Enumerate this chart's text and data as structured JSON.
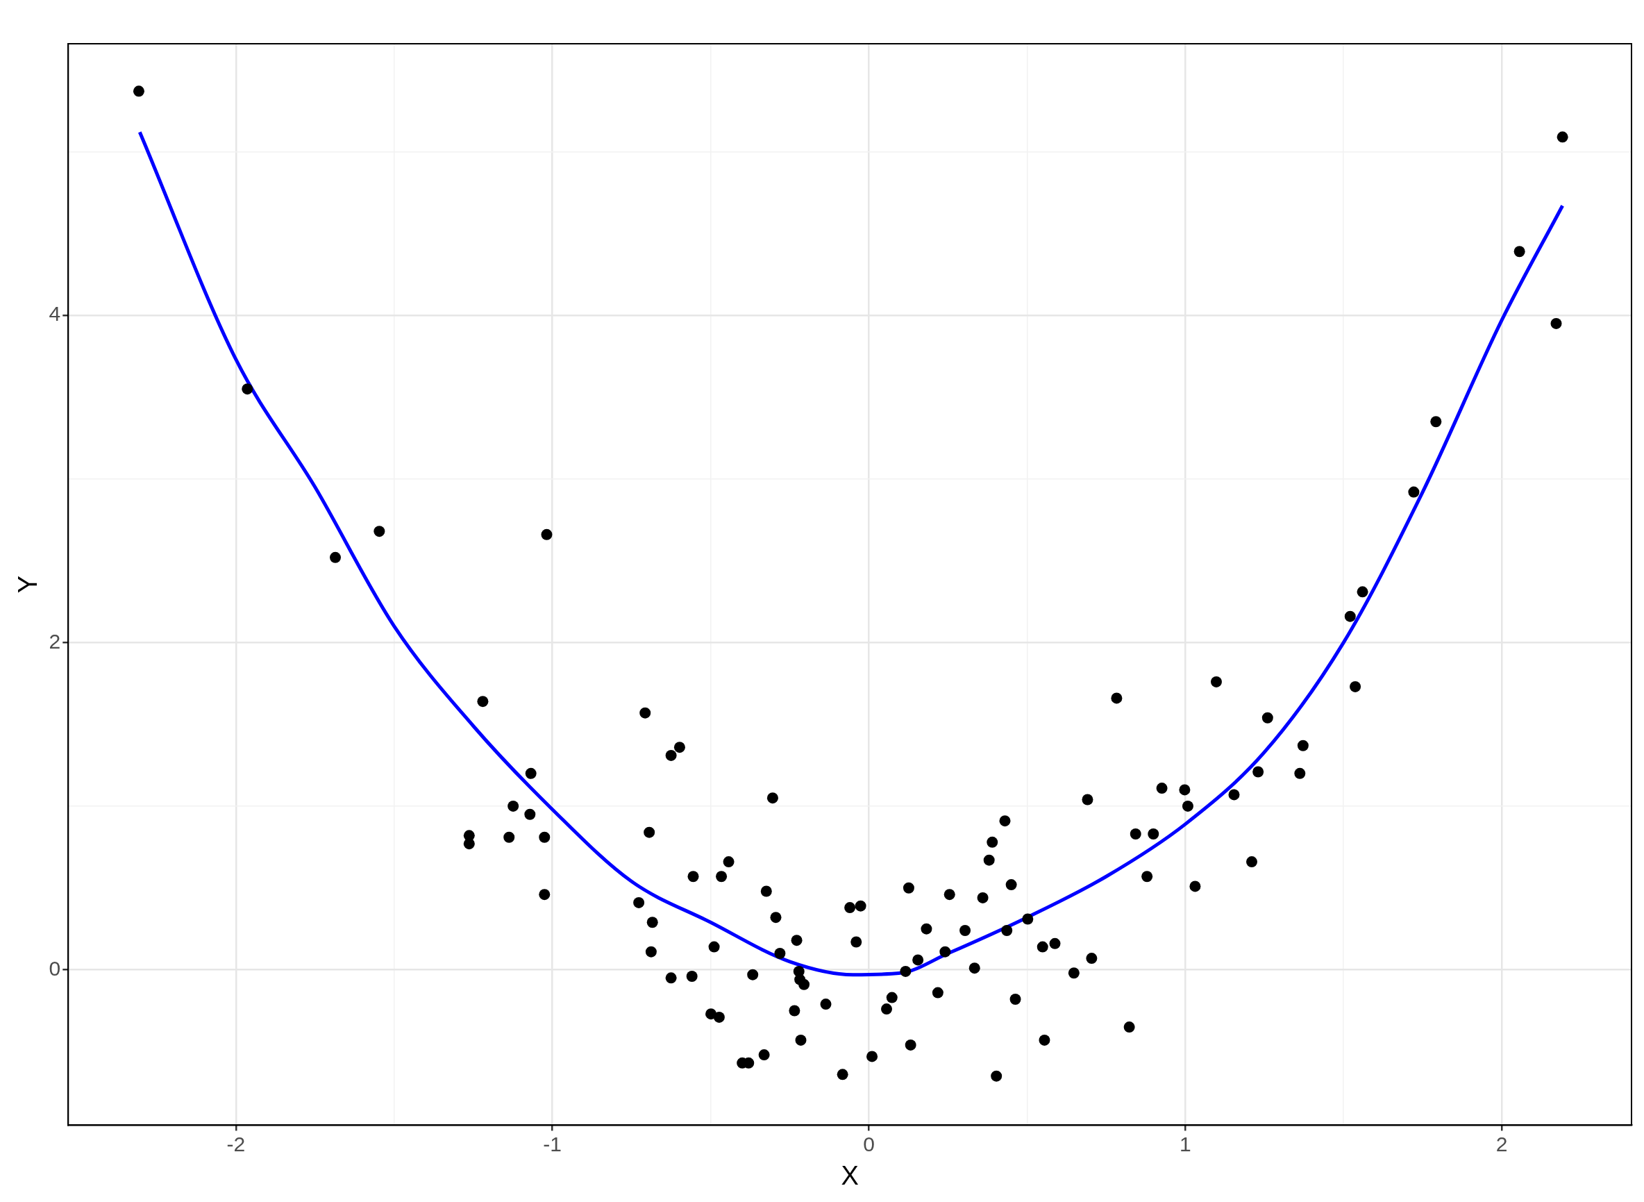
{
  "chart_data": {
    "type": "scatter",
    "xlabel": "X",
    "ylabel": "Y",
    "grid": true,
    "xlim": [
      -2.53,
      2.41
    ],
    "ylim": [
      -0.95,
      5.66
    ],
    "xticks": [
      -2,
      {
        "value": -1.5,
        "label": null
      },
      -1,
      {
        "value": -0.5,
        "label": null
      },
      0,
      {
        "value": 0.5,
        "label": null
      },
      1,
      {
        "value": 1.5,
        "label": null
      },
      2
    ],
    "yticks": [
      0,
      {
        "value": 1,
        "label": null
      },
      2,
      {
        "value": 3,
        "label": null
      },
      4,
      {
        "value": 5,
        "label": null
      }
    ],
    "series": [
      {
        "type": "scatter",
        "marker": "circle",
        "color": "#000000",
        "x": [
          -2.307,
          -1.964,
          -1.686,
          -1.547,
          -1.018,
          -1.22,
          -1.263,
          -1.263,
          -1.137,
          -1.124,
          -1.068,
          -1.071,
          -1.025,
          -1.025,
          -0.707,
          -0.694,
          -0.727,
          -0.684,
          -0.688,
          -0.625,
          -0.598,
          -0.625,
          -0.555,
          -0.559,
          -0.466,
          -0.443,
          -0.489,
          -0.499,
          -0.473,
          -0.4,
          -0.38,
          -0.367,
          -0.324,
          -0.304,
          -0.294,
          -0.281,
          -0.331,
          -0.228,
          -0.221,
          -0.218,
          -0.205,
          -0.235,
          -0.215,
          -0.136,
          -0.083,
          -0.06,
          -0.026,
          -0.04,
          0.01,
          0.056,
          0.073,
          0.116,
          0.126,
          0.132,
          0.155,
          0.182,
          0.218,
          0.241,
          0.255,
          0.304,
          0.334,
          0.36,
          0.38,
          0.39,
          0.403,
          0.43,
          0.436,
          0.45,
          0.463,
          0.502,
          0.549,
          0.555,
          0.588,
          0.648,
          0.691,
          0.704,
          0.783,
          0.823,
          0.843,
          0.879,
          0.899,
          0.926,
          0.998,
          1.008,
          1.031,
          1.098,
          1.154,
          1.21,
          1.23,
          1.26,
          1.362,
          1.372,
          1.521,
          1.537,
          1.56,
          1.722,
          1.792,
          2.056,
          2.172,
          2.192
        ],
        "values": [
          5.37,
          3.55,
          2.52,
          2.68,
          2.66,
          1.64,
          0.82,
          0.77,
          0.81,
          1.0,
          1.2,
          0.95,
          0.81,
          0.46,
          1.57,
          0.84,
          0.41,
          0.29,
          0.11,
          1.31,
          1.36,
          -0.05,
          0.57,
          -0.04,
          0.57,
          0.66,
          0.14,
          -0.27,
          -0.29,
          -0.57,
          -0.57,
          -0.03,
          0.48,
          1.05,
          0.32,
          0.1,
          -0.52,
          0.18,
          -0.01,
          -0.06,
          -0.09,
          -0.25,
          -0.43,
          -0.21,
          -0.64,
          0.38,
          0.39,
          0.17,
          -0.53,
          -0.24,
          -0.17,
          -0.01,
          0.5,
          -0.46,
          0.06,
          0.25,
          -0.14,
          0.11,
          0.46,
          0.24,
          0.01,
          0.44,
          0.67,
          0.78,
          -0.65,
          0.91,
          0.24,
          0.52,
          -0.18,
          0.31,
          0.14,
          -0.43,
          0.16,
          -0.02,
          1.04,
          0.07,
          1.66,
          -0.35,
          0.83,
          0.57,
          0.83,
          1.11,
          1.1,
          1.0,
          0.51,
          1.76,
          1.07,
          0.66,
          1.21,
          1.54,
          1.2,
          1.37,
          2.16,
          1.73,
          2.31,
          2.92,
          3.35,
          4.39,
          3.95,
          5.09
        ]
      },
      {
        "type": "line",
        "marker": "none",
        "color": "#0000ff",
        "x": [
          -2.304,
          -2.0,
          -1.75,
          -1.5,
          -1.25,
          -1.0,
          -0.75,
          -0.5,
          -0.25,
          -0.05,
          0.1,
          0.25,
          0.5,
          0.75,
          1.0,
          1.25,
          1.5,
          1.75,
          2.0,
          2.192
        ],
        "values": [
          5.12,
          3.73,
          2.95,
          2.1,
          1.49,
          0.98,
          0.54,
          0.29,
          0.05,
          -0.03,
          -0.02,
          0.1,
          0.32,
          0.57,
          0.89,
          1.33,
          2.0,
          2.92,
          3.97,
          4.67
        ]
      }
    ]
  }
}
